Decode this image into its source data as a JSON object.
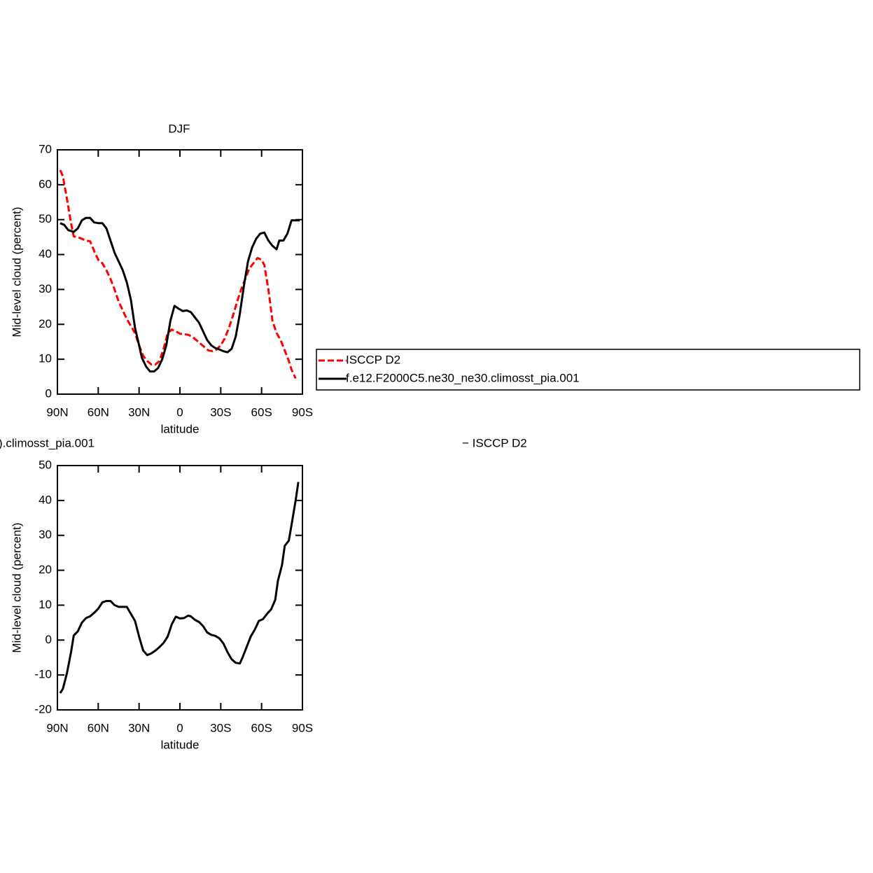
{
  "chart_data": [
    {
      "type": "line",
      "title": "DJF",
      "y_label": "Mid-level cloud (percent)",
      "x_label": "latitude",
      "xlim": [
        90,
        -90
      ],
      "xticks": [
        {
          "value": 90,
          "label": "90N"
        },
        {
          "value": 60,
          "label": "60N"
        },
        {
          "value": 30,
          "label": "30N"
        },
        0,
        {
          "value": -30,
          "label": "30S"
        },
        {
          "value": -60,
          "label": "60S"
        },
        {
          "value": -90,
          "label": "90S"
        }
      ],
      "ylim": [
        0,
        70
      ],
      "yticks": [
        0,
        10,
        20,
        30,
        40,
        50,
        60,
        70
      ],
      "legend": "right",
      "series": [
        {
          "name": "ISCCP D2",
          "color": "#ff0000",
          "line_style": "dashed",
          "x": [
            88,
            86,
            83,
            80,
            78,
            75,
            72,
            69,
            66,
            63,
            60,
            57,
            54,
            51,
            48,
            45,
            42,
            39,
            36,
            33,
            30,
            27,
            24,
            21,
            18,
            15,
            12,
            9,
            6,
            3,
            0,
            -3,
            -6,
            -9,
            -12,
            -15,
            -18,
            -21,
            -24,
            -27,
            -30,
            -33,
            -36,
            -39,
            -42,
            -45,
            -48,
            -51,
            -54,
            -57,
            -60,
            -62,
            -65,
            -68,
            -71,
            -74,
            -77,
            -80,
            -82,
            -85
          ],
          "values": [
            64.2,
            62.5,
            56,
            49,
            45.2,
            45,
            44.5,
            44,
            43.8,
            41,
            38.5,
            37.5,
            35.5,
            33,
            30,
            26.5,
            24,
            21.5,
            19.5,
            17.5,
            14,
            11,
            9.5,
            8.5,
            8.5,
            9.5,
            13,
            17.5,
            18.5,
            18,
            17.3,
            17.2,
            17,
            16.5,
            15.5,
            14.5,
            13.5,
            12.5,
            12.3,
            12.8,
            14,
            16,
            19,
            22.5,
            26.5,
            30,
            33,
            36,
            37.5,
            39,
            38.5,
            37,
            30,
            21,
            17.5,
            15.5,
            12.5,
            9.5,
            7,
            4.5
          ]
        },
        {
          "name": "f.e12.F2000C5.ne30_ne30.climosst_pia.001",
          "color": "#000000",
          "line_style": "solid",
          "x": [
            88,
            85,
            82,
            78,
            75,
            72,
            69,
            66,
            63,
            60,
            57,
            54,
            51,
            48,
            45,
            42,
            39,
            36,
            33,
            30,
            28,
            25,
            22,
            19,
            16,
            13,
            10,
            7,
            4,
            1,
            -2,
            -5,
            -8,
            -11,
            -14,
            -17,
            -20,
            -23,
            -26,
            -29,
            -32,
            -35,
            -38,
            -41,
            -44,
            -47,
            -50,
            -53,
            -56,
            -59,
            -62,
            -65,
            -68,
            -71,
            -73,
            -76,
            -79,
            -82,
            -85,
            -88
          ],
          "values": [
            49,
            48.5,
            47,
            46.5,
            47.5,
            49.8,
            50.5,
            50.5,
            49.2,
            49,
            49,
            47.5,
            44,
            40.5,
            38,
            35.5,
            32,
            27,
            19,
            14,
            10.5,
            8,
            6.5,
            6.5,
            7.5,
            10,
            14,
            21,
            25.3,
            24.5,
            23.8,
            24,
            23.5,
            22,
            20.5,
            18,
            15.5,
            14,
            13.2,
            12.8,
            12.3,
            12,
            13,
            16.5,
            23,
            31,
            38,
            42,
            44.5,
            46,
            46.3,
            44,
            42.5,
            41.5,
            44,
            44,
            46,
            49.8,
            49.8,
            49.8
          ]
        }
      ]
    },
    {
      "type": "line",
      "title_left": ").climosst_pia.001",
      "title_right": "− ISCCP D2",
      "y_label": "Mid-level cloud (percent)",
      "x_label": "latitude",
      "xlim": [
        90,
        -90
      ],
      "xticks": [
        {
          "value": 90,
          "label": "90N"
        },
        {
          "value": 60,
          "label": "60N"
        },
        {
          "value": 30,
          "label": "30N"
        },
        0,
        {
          "value": -30,
          "label": "30S"
        },
        {
          "value": -60,
          "label": "60S"
        },
        {
          "value": -90,
          "label": "90S"
        }
      ],
      "ylim": [
        -20,
        50
      ],
      "yticks": [
        -20,
        -10,
        0,
        10,
        20,
        30,
        40,
        50
      ],
      "color": "#000000",
      "line_style": "solid",
      "x": [
        88,
        86,
        83,
        80,
        78,
        75,
        72,
        69,
        66,
        63,
        60,
        57,
        54,
        51,
        48,
        45,
        42,
        39,
        36,
        33,
        30,
        27,
        24,
        21,
        18,
        15,
        12,
        9,
        6,
        3,
        0,
        -3,
        -6,
        -8,
        -11,
        -14,
        -17,
        -20,
        -23,
        -26,
        -29,
        -32,
        -35,
        -38,
        -41,
        -44,
        -46,
        -49,
        -52,
        -55,
        -58,
        -61,
        -64,
        -67,
        -70,
        -72,
        -75,
        -77,
        -80,
        -82,
        -85,
        -87
      ],
      "values": [
        -15.2,
        -14,
        -9.5,
        -3.5,
        1.3,
        2.5,
        5,
        6.3,
        6.8,
        7.8,
        9,
        10.8,
        11.2,
        11.2,
        10,
        9.5,
        9.5,
        9.5,
        7.5,
        5.5,
        1,
        -3,
        -4.3,
        -3.8,
        -3,
        -2,
        -0.8,
        1,
        4.5,
        6.7,
        6.2,
        6.3,
        7,
        6.8,
        5.8,
        5.2,
        4,
        2.2,
        1.5,
        1.2,
        0.5,
        -1,
        -3.5,
        -5.5,
        -6.5,
        -6.7,
        -5,
        -2,
        1,
        3,
        5.5,
        6,
        7.5,
        8.8,
        11.5,
        17,
        21.5,
        27,
        28.5,
        33,
        40,
        45.3
      ]
    }
  ]
}
